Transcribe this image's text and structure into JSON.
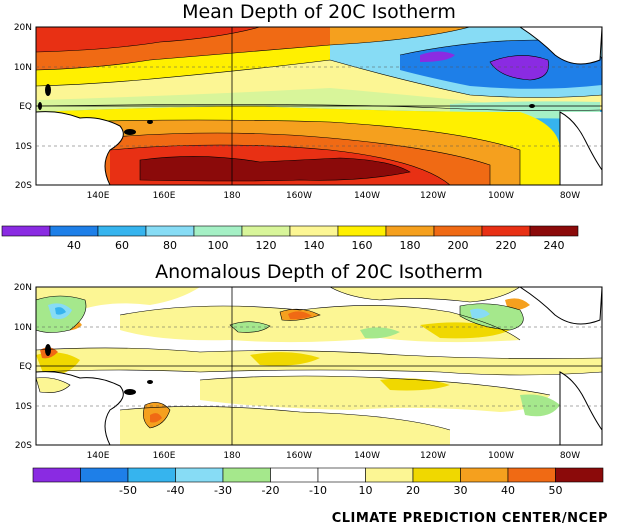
{
  "chart_data": [
    {
      "type": "heatmap",
      "title": "Mean Depth of 20C Isotherm",
      "x_ticks": [
        "140E",
        "160E",
        "180",
        "160W",
        "140W",
        "120W",
        "100W",
        "80W"
      ],
      "y_ticks": [
        "20N",
        "10N",
        "EQ",
        "10S",
        "20S"
      ],
      "colorbar": {
        "colors": [
          "#8a2be2",
          "#1e7fe8",
          "#36b4ee",
          "#87dcf5",
          "#a5f0c5",
          "#d8f59a",
          "#fcf694",
          "#fff000",
          "#f5a01e",
          "#f06a14",
          "#e83014",
          "#8b0a0a"
        ],
        "labels": [
          "40",
          "60",
          "80",
          "100",
          "120",
          "140",
          "160",
          "180",
          "200",
          "220",
          "240"
        ]
      }
    },
    {
      "type": "heatmap",
      "title": "Anomalous Depth of 20C Isotherm",
      "x_ticks": [
        "140E",
        "160E",
        "180",
        "160W",
        "140W",
        "120W",
        "100W",
        "80W"
      ],
      "y_ticks": [
        "20N",
        "10N",
        "EQ",
        "10S",
        "20S"
      ],
      "colorbar": {
        "colors": [
          "#8a2be2",
          "#1e7fe8",
          "#36b4ee",
          "#87dcf5",
          "#a5e88c",
          "#ffffff",
          "#ffffff",
          "#fcf694",
          "#f0d800",
          "#f5a01e",
          "#f06a14",
          "#8b0a0a"
        ],
        "labels": [
          "-50",
          "-40",
          "-30",
          "-20",
          "-10",
          "10",
          "20",
          "30",
          "40",
          "50"
        ]
      }
    }
  ],
  "footer": {
    "credit": "CLIMATE PREDICTION CENTER/NCEP"
  }
}
